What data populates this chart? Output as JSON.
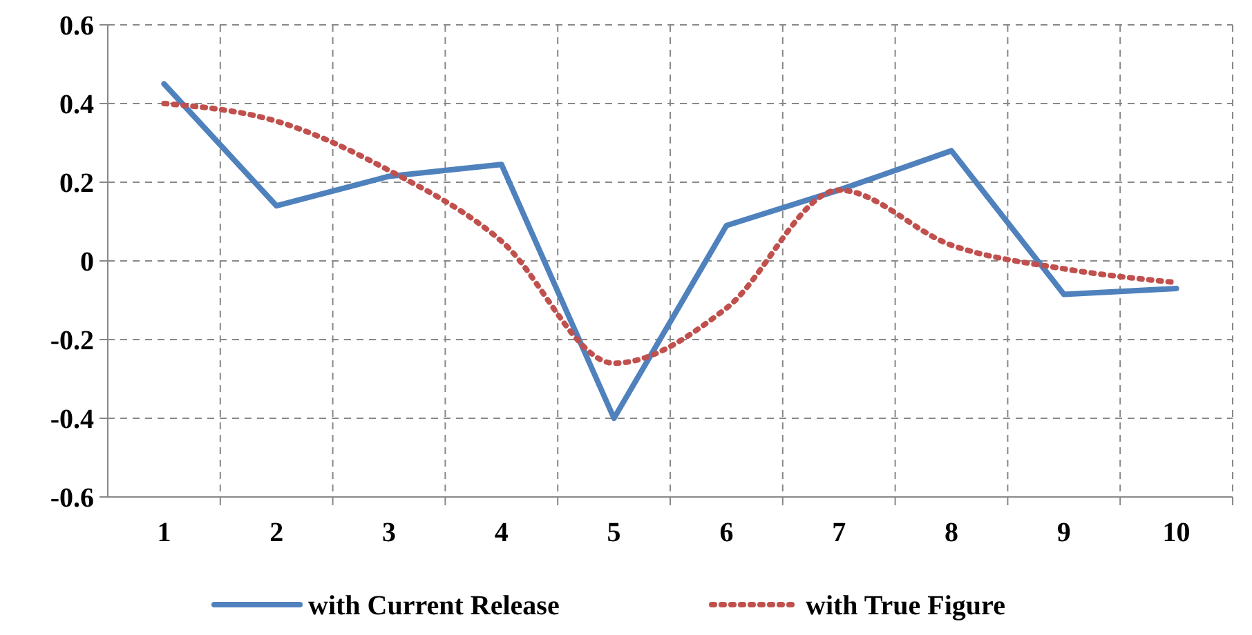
{
  "chart_data": {
    "type": "line",
    "categories": [
      "1",
      "2",
      "3",
      "4",
      "5",
      "6",
      "7",
      "8",
      "9",
      "10"
    ],
    "series": [
      {
        "name": "with Current Release",
        "color": "#4f81bd",
        "line_style": "solid",
        "values": [
          0.45,
          0.14,
          0.215,
          0.245,
          -0.4,
          0.09,
          0.18,
          0.28,
          -0.085,
          -0.07
        ]
      },
      {
        "name": "with True Figure",
        "color": "#c0504d",
        "line_style": "dotted",
        "values": [
          0.4,
          0.355,
          0.23,
          0.05,
          -0.26,
          -0.12,
          0.18,
          0.04,
          -0.02,
          -0.055
        ]
      }
    ],
    "ylim": [
      -0.6,
      0.6
    ],
    "yticks": [
      {
        "value": -0.6,
        "label": "-0.6"
      },
      {
        "value": -0.4,
        "label": "-0.4"
      },
      {
        "value": -0.2,
        "label": "-0.2"
      },
      0,
      {
        "value": 0.2,
        "label": "0.2"
      },
      {
        "value": 0.4,
        "label": "0.4"
      },
      {
        "value": 0.6,
        "label": "0.6"
      }
    ],
    "grid": true,
    "legend": "bottom",
    "marker": "none"
  }
}
